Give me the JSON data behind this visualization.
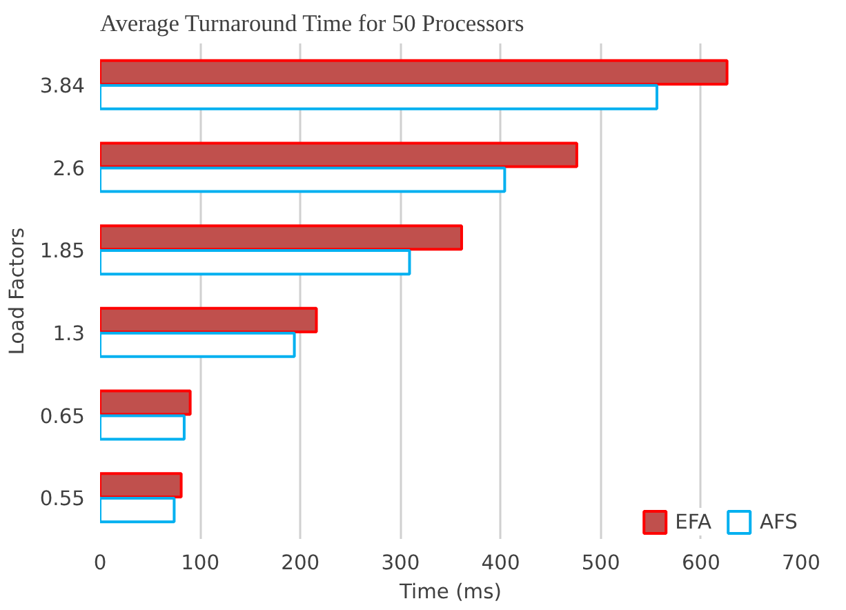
{
  "chart_data": {
    "type": "bar",
    "orientation": "horizontal",
    "title": "Average Turnaround Time for 50 Processors",
    "xlabel": "Time (ms)",
    "ylabel": "Load Factors",
    "categories": [
      "3.84",
      "2.6",
      "1.85",
      "1.3",
      "0.65",
      "0.55"
    ],
    "series": [
      {
        "name": "EFA",
        "color": "#c0504d",
        "values": [
          626,
          476,
          361,
          216,
          90,
          81
        ]
      },
      {
        "name": "AFS",
        "color": "#00b0f0",
        "values": [
          556,
          404,
          309,
          194,
          84,
          74
        ]
      }
    ],
    "xlim": [
      0,
      700
    ],
    "xticks": [
      0,
      100,
      200,
      300,
      400,
      500,
      600,
      700
    ],
    "grid": "x",
    "legend": "bottom right"
  }
}
